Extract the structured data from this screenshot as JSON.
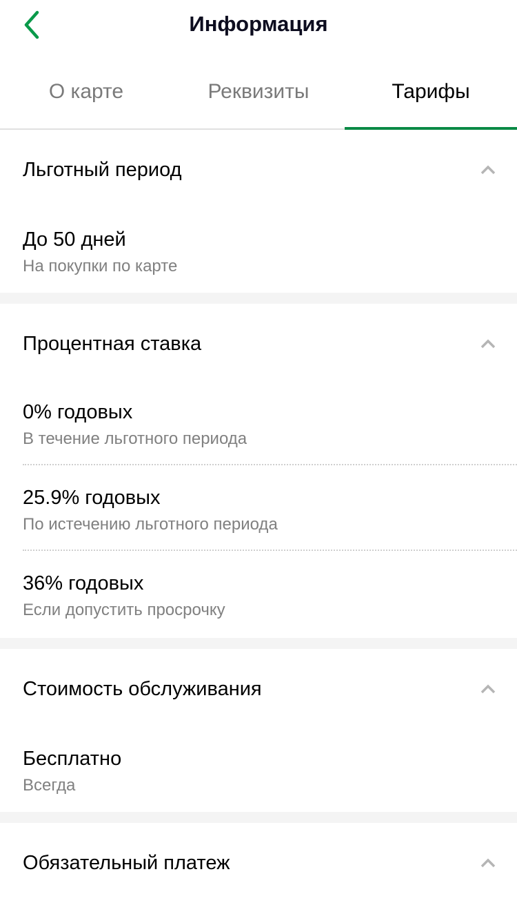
{
  "header": {
    "title": "Информация",
    "back_icon": "chevron-left-icon"
  },
  "tabs": [
    {
      "label": "О карте",
      "active": false
    },
    {
      "label": "Реквизиты",
      "active": false
    },
    {
      "label": "Тарифы",
      "active": true
    }
  ],
  "colors": {
    "accent": "#0a8a45",
    "secondary_text": "#808080"
  },
  "sections": [
    {
      "title": "Льготный период",
      "items": [
        {
          "title": "До 50 дней",
          "subtitle": "На покупки по карте"
        }
      ]
    },
    {
      "title": "Процентная ставка",
      "items": [
        {
          "title": "0% годовых",
          "subtitle": "В течение льготного периода"
        },
        {
          "title": "25.9% годовых",
          "subtitle": "По истечению льготного периода"
        },
        {
          "title": "36% годовых",
          "subtitle": "Если допустить просрочку"
        }
      ]
    },
    {
      "title": "Стоимость обслуживания",
      "items": [
        {
          "title": "Бесплатно",
          "subtitle": "Всегда"
        }
      ]
    },
    {
      "title": "Обязательный платеж",
      "items": []
    }
  ]
}
